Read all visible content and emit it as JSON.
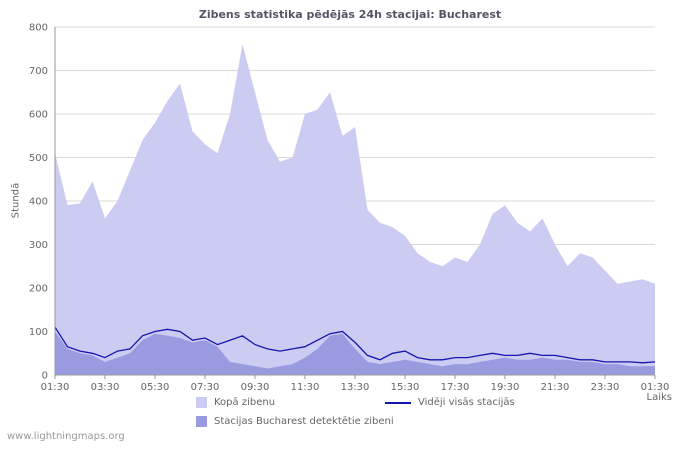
{
  "chart_data": {
    "type": "area",
    "title": "Zibens statistika pēdējās 24h stacijai: Bucharest",
    "ylabel": "Stundā",
    "xlabel": "Laiks",
    "ylim": [
      0,
      800
    ],
    "ytick_step": 100,
    "grid": true,
    "legend_position": "bottom",
    "x": [
      "01:30",
      "02:00",
      "02:30",
      "03:00",
      "03:30",
      "04:00",
      "04:30",
      "05:00",
      "05:30",
      "06:00",
      "06:30",
      "07:00",
      "07:30",
      "08:00",
      "08:30",
      "09:00",
      "09:30",
      "10:00",
      "10:30",
      "11:00",
      "11:30",
      "12:00",
      "12:30",
      "13:00",
      "13:30",
      "14:00",
      "14:30",
      "15:00",
      "15:30",
      "16:00",
      "16:30",
      "17:00",
      "17:30",
      "18:00",
      "18:30",
      "19:00",
      "19:30",
      "20:00",
      "20:30",
      "21:00",
      "21:30",
      "22:00",
      "22:30",
      "23:00",
      "23:30",
      "00:00",
      "00:30",
      "01:00",
      "01:30"
    ],
    "xticks": [
      "01:30",
      "03:30",
      "05:30",
      "07:30",
      "09:30",
      "11:30",
      "13:30",
      "15:30",
      "17:30",
      "19:30",
      "21:30",
      "23:30",
      "01:30"
    ],
    "series": [
      {
        "name": "Kopā zibenu",
        "kind": "area",
        "color": "#ccccf2",
        "values": [
          510,
          390,
          395,
          445,
          360,
          400,
          470,
          540,
          580,
          630,
          670,
          560,
          530,
          510,
          600,
          760,
          650,
          540,
          490,
          500,
          600,
          610,
          650,
          550,
          570,
          380,
          350,
          340,
          320,
          280,
          260,
          250,
          270,
          260,
          300,
          370,
          390,
          350,
          330,
          360,
          300,
          250,
          280,
          270,
          240,
          210,
          215,
          220,
          210
        ]
      },
      {
        "name": "Stacijas Bucharest detektētie zibeni",
        "kind": "area",
        "color": "#9a9ae0",
        "values": [
          100,
          60,
          50,
          45,
          30,
          40,
          50,
          80,
          95,
          90,
          85,
          75,
          80,
          65,
          30,
          25,
          20,
          15,
          20,
          25,
          40,
          60,
          90,
          95,
          60,
          30,
          25,
          30,
          35,
          30,
          25,
          20,
          25,
          25,
          30,
          35,
          40,
          35,
          35,
          40,
          35,
          35,
          30,
          30,
          25,
          25,
          20,
          20,
          20
        ]
      },
      {
        "name": "Vidēji visās stacijās",
        "kind": "line",
        "color": "#1515b0",
        "values": [
          110,
          65,
          55,
          50,
          40,
          55,
          60,
          90,
          100,
          105,
          100,
          80,
          85,
          70,
          80,
          90,
          70,
          60,
          55,
          60,
          65,
          80,
          95,
          100,
          75,
          45,
          35,
          50,
          55,
          40,
          35,
          35,
          40,
          40,
          45,
          50,
          45,
          45,
          50,
          45,
          45,
          40,
          35,
          35,
          30,
          30,
          30,
          28,
          30
        ]
      }
    ],
    "colors": {
      "grid": "#d9d9d9",
      "axis": "#999999",
      "text": "#666666",
      "title": "#555566"
    }
  },
  "watermark": {
    "text": "www.lightningmaps.org"
  }
}
